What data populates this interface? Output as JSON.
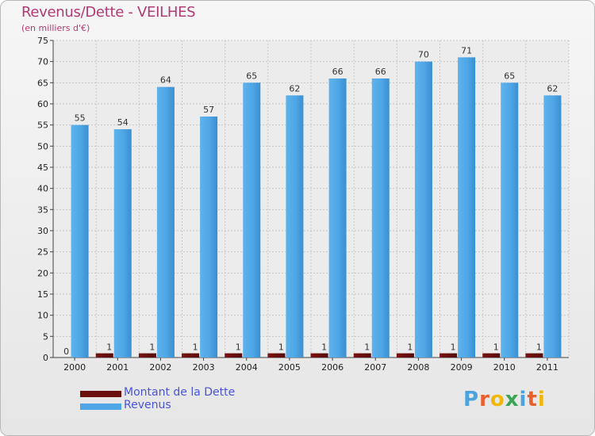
{
  "header": {
    "title": "Revenus/Dette - VEILHES",
    "subtitle": "(en milliers d'€)"
  },
  "legend": {
    "items": [
      {
        "label": "Montant de la Dette",
        "color": "#6b0f0f"
      },
      {
        "label": "Revenus",
        "color": "#4ea6e6"
      }
    ]
  },
  "logo": {
    "text": "Proxiti",
    "letters": [
      {
        "ch": "P",
        "color": "#4aa3df"
      },
      {
        "ch": "r",
        "color": "#e8612c"
      },
      {
        "ch": "o",
        "color": "#f2b705"
      },
      {
        "ch": "x",
        "color": "#3aa655"
      },
      {
        "ch": "i",
        "color": "#4aa3df"
      },
      {
        "ch": "t",
        "color": "#e8612c"
      },
      {
        "ch": "i",
        "color": "#f2b705"
      }
    ]
  },
  "chart_data": {
    "type": "bar",
    "categories": [
      "2000",
      "2001",
      "2002",
      "2003",
      "2004",
      "2005",
      "2006",
      "2007",
      "2008",
      "2009",
      "2010",
      "2011"
    ],
    "series": [
      {
        "name": "Montant de la Dette",
        "values": [
          0,
          1,
          1,
          1,
          1,
          1,
          1,
          1,
          1,
          1,
          1,
          1
        ],
        "color": "#6b0f0f"
      },
      {
        "name": "Revenus",
        "values": [
          55,
          54,
          64,
          57,
          65,
          62,
          66,
          66,
          70,
          71,
          65,
          62
        ],
        "color": "#4ea6e6"
      }
    ],
    "ylim": [
      0,
      75
    ],
    "yticks": [
      0,
      5,
      10,
      15,
      20,
      25,
      30,
      35,
      40,
      45,
      50,
      55,
      60,
      65,
      70,
      75
    ],
    "grid": true,
    "legend_position": "bottom-left"
  }
}
